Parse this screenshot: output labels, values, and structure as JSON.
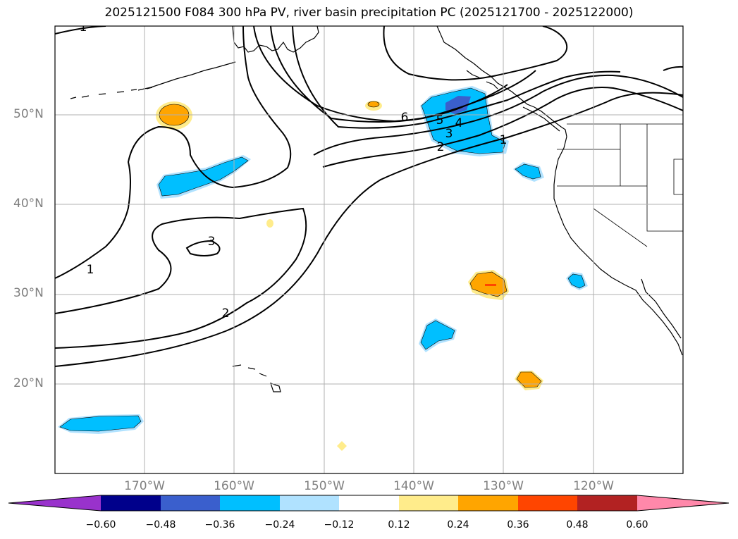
{
  "title": "2025121500 F084 300 hPa PV, river basin precipitation PC (2025121700 - 2025122000)",
  "map": {
    "lat_labels": [
      "50°N",
      "40°N",
      "30°N",
      "20°N"
    ],
    "lon_labels": [
      "170°W",
      "160°W",
      "150°W",
      "140°W",
      "130°W",
      "120°W"
    ],
    "contour_labels": [
      "1",
      "1",
      "1",
      "2",
      "2",
      "3",
      "3",
      "4",
      "5",
      "6"
    ]
  },
  "colorbar": {
    "ticks": [
      "−0.60",
      "−0.48",
      "−0.36",
      "−0.24",
      "−0.12",
      "0.12",
      "0.24",
      "0.36",
      "0.48",
      "0.60"
    ],
    "colors": [
      "#9932cc",
      "#00008b",
      "#3a5fcd",
      "#00bfff",
      "#b0e2ff",
      "#ffffff",
      "#ffec8b",
      "#ffa500",
      "#ff4500",
      "#b22222",
      "#ff88aa"
    ]
  },
  "colors": {
    "pos_light": "#ffec8b",
    "pos_mid": "#ffa500",
    "pos_strong": "#ff4500",
    "neg_light": "#b0e2ff",
    "neg_mid": "#00bfff",
    "neg_strong": "#3a5fcd",
    "grid": "#b0b0b0"
  }
}
